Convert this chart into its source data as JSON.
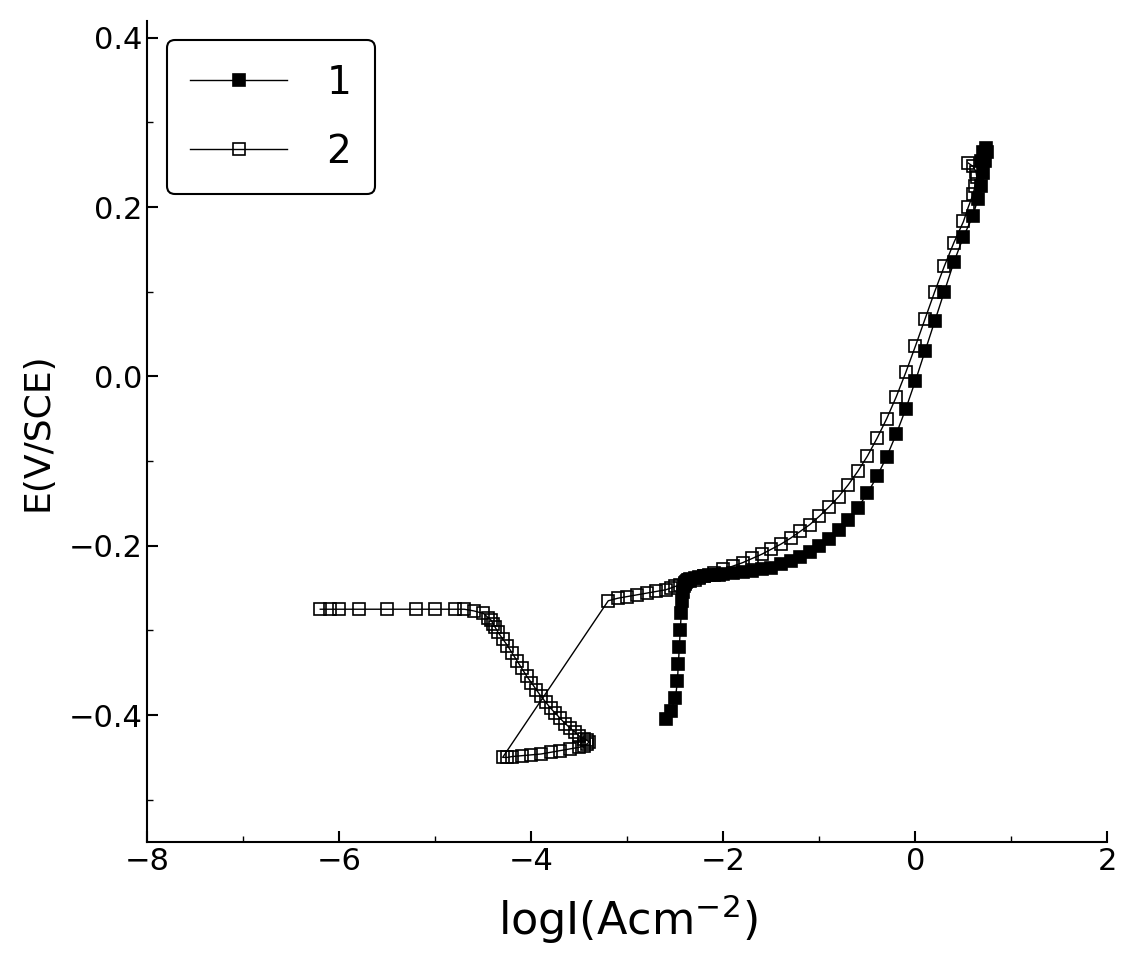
{
  "title": "",
  "xlabel": "logI(Acm$^{-2}$)",
  "ylabel": "E(V/SCE)",
  "xlim": [
    -8,
    2
  ],
  "ylim": [
    -0.55,
    0.42
  ],
  "xticks": [
    -8,
    -6,
    -4,
    -2,
    0,
    2
  ],
  "yticks": [
    -0.4,
    -0.2,
    0.0,
    0.2,
    0.4
  ],
  "background_color": "#ffffff",
  "series1": {
    "label": "1",
    "color": "black",
    "marker": "s",
    "markersize": 8,
    "fillstyle": "full",
    "linewidth": 1.0,
    "x": [
      -2.6,
      -2.55,
      -2.5,
      -2.48,
      -2.47,
      -2.46,
      -2.45,
      -2.44,
      -2.43,
      -2.42,
      -2.41,
      -2.4,
      -2.39,
      -2.38,
      -2.37,
      -2.36,
      -2.35,
      -2.3,
      -2.25,
      -2.2,
      -2.15,
      -2.1,
      -2.05,
      -2.0,
      -1.9,
      -1.8,
      -1.7,
      -1.6,
      -1.5,
      -1.4,
      -1.3,
      -1.2,
      -1.1,
      -1.0,
      -0.9,
      -0.8,
      -0.7,
      -0.6,
      -0.5,
      -0.4,
      -0.3,
      -0.2,
      -0.1,
      0.0,
      0.1,
      0.2,
      0.3,
      0.4,
      0.5,
      0.6,
      0.65,
      0.68,
      0.7,
      0.72,
      0.74,
      0.73,
      0.7,
      0.68
    ],
    "y": [
      -0.405,
      -0.395,
      -0.38,
      -0.36,
      -0.34,
      -0.32,
      -0.3,
      -0.28,
      -0.265,
      -0.255,
      -0.248,
      -0.245,
      -0.243,
      -0.242,
      -0.241,
      -0.24,
      -0.239,
      -0.238,
      -0.237,
      -0.236,
      -0.235,
      -0.234,
      -0.234,
      -0.233,
      -0.232,
      -0.231,
      -0.23,
      -0.228,
      -0.226,
      -0.222,
      -0.218,
      -0.213,
      -0.207,
      -0.2,
      -0.192,
      -0.182,
      -0.17,
      -0.155,
      -0.138,
      -0.118,
      -0.095,
      -0.068,
      -0.038,
      -0.005,
      0.03,
      0.065,
      0.1,
      0.135,
      0.165,
      0.19,
      0.21,
      0.225,
      0.24,
      0.255,
      0.265,
      0.27,
      0.265,
      0.255
    ]
  },
  "series2": {
    "label": "2",
    "color": "black",
    "marker": "s",
    "markersize": 8,
    "fillstyle": "none",
    "linewidth": 1.0,
    "x": [
      -6.2,
      -6.1,
      -6.0,
      -5.8,
      -5.5,
      -5.2,
      -5.0,
      -4.8,
      -4.7,
      -4.6,
      -4.5,
      -4.45,
      -4.42,
      -4.4,
      -4.38,
      -4.35,
      -4.3,
      -4.25,
      -4.2,
      -4.15,
      -4.1,
      -4.05,
      -4.0,
      -3.95,
      -3.9,
      -3.85,
      -3.8,
      -3.75,
      -3.7,
      -3.65,
      -3.6,
      -3.55,
      -3.5,
      -3.45,
      -3.42,
      -3.4,
      -3.42,
      -3.45,
      -3.5,
      -3.6,
      -3.7,
      -3.8,
      -3.9,
      -4.0,
      -4.1,
      -4.2,
      -4.25,
      -4.3,
      -3.2,
      -3.1,
      -3.0,
      -2.9,
      -2.8,
      -2.7,
      -2.6,
      -2.55,
      -2.5,
      -2.45,
      -2.4,
      -2.35,
      -2.3,
      -2.25,
      -2.2,
      -2.1,
      -2.0,
      -1.9,
      -1.8,
      -1.7,
      -1.6,
      -1.5,
      -1.4,
      -1.3,
      -1.2,
      -1.1,
      -1.0,
      -0.9,
      -0.8,
      -0.7,
      -0.6,
      -0.5,
      -0.4,
      -0.3,
      -0.2,
      -0.1,
      0.0,
      0.1,
      0.2,
      0.3,
      0.4,
      0.5,
      0.55,
      0.6,
      0.62,
      0.64,
      0.63,
      0.6,
      0.55
    ],
    "y": [
      -0.275,
      -0.275,
      -0.275,
      -0.275,
      -0.275,
      -0.275,
      -0.275,
      -0.275,
      -0.275,
      -0.277,
      -0.28,
      -0.285,
      -0.288,
      -0.292,
      -0.296,
      -0.302,
      -0.31,
      -0.318,
      -0.327,
      -0.336,
      -0.345,
      -0.354,
      -0.362,
      -0.37,
      -0.378,
      -0.385,
      -0.392,
      -0.398,
      -0.404,
      -0.41,
      -0.415,
      -0.42,
      -0.425,
      -0.428,
      -0.43,
      -0.432,
      -0.434,
      -0.436,
      -0.438,
      -0.44,
      -0.442,
      -0.444,
      -0.446,
      -0.447,
      -0.448,
      -0.449,
      -0.45,
      -0.45,
      -0.265,
      -0.262,
      -0.26,
      -0.258,
      -0.256,
      -0.254,
      -0.252,
      -0.25,
      -0.248,
      -0.246,
      -0.244,
      -0.242,
      -0.24,
      -0.238,
      -0.236,
      -0.232,
      -0.228,
      -0.224,
      -0.22,
      -0.215,
      -0.21,
      -0.204,
      -0.198,
      -0.191,
      -0.183,
      -0.175,
      -0.165,
      -0.154,
      -0.142,
      -0.128,
      -0.112,
      -0.094,
      -0.073,
      -0.05,
      -0.024,
      0.005,
      0.036,
      0.068,
      0.1,
      0.13,
      0.158,
      0.183,
      0.2,
      0.215,
      0.225,
      0.235,
      0.242,
      0.248,
      0.252
    ]
  }
}
